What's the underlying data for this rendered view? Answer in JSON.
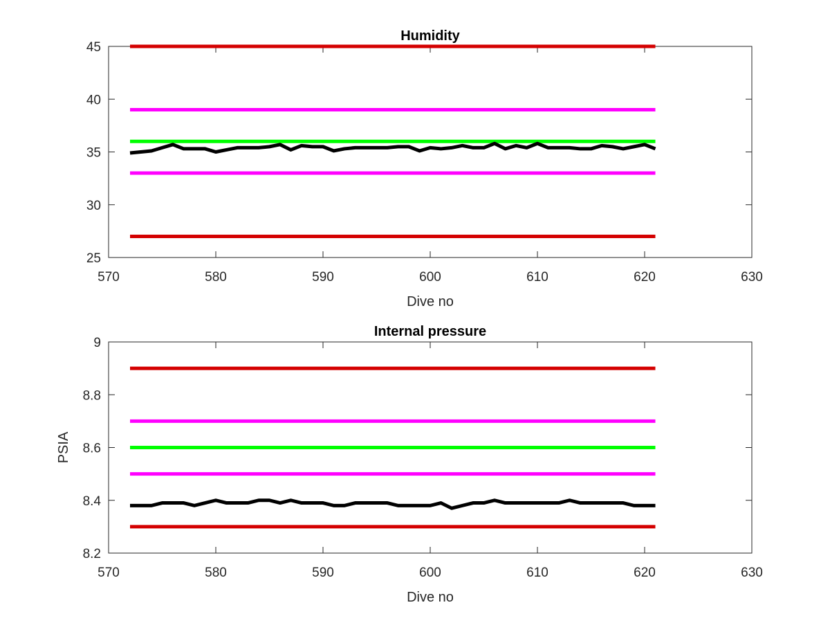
{
  "chart_data": [
    {
      "type": "line",
      "title": "Humidity",
      "xlabel": "Dive no",
      "ylabel": "",
      "xlim": [
        570,
        630
      ],
      "ylim": [
        25,
        45
      ],
      "xticks": [
        570,
        580,
        590,
        600,
        610,
        620,
        630
      ],
      "yticks": [
        25,
        30,
        35,
        40,
        45
      ],
      "grid": false,
      "thresholds": [
        {
          "y": 45,
          "x": [
            572,
            621
          ],
          "color": "#d40000"
        },
        {
          "y": 39,
          "x": [
            572,
            621
          ],
          "color": "#ff00ff"
        },
        {
          "y": 36,
          "x": [
            572,
            621
          ],
          "color": "#00ff00"
        },
        {
          "y": 33,
          "x": [
            572,
            621
          ],
          "color": "#ff00ff"
        },
        {
          "y": 27,
          "x": [
            572,
            621
          ],
          "color": "#d40000"
        }
      ],
      "series": [
        {
          "color": "#000000",
          "x": [
            572,
            573,
            574,
            575,
            576,
            577,
            578,
            579,
            580,
            581,
            582,
            583,
            584,
            585,
            586,
            587,
            588,
            589,
            590,
            591,
            592,
            593,
            594,
            595,
            596,
            597,
            598,
            599,
            600,
            601,
            602,
            603,
            604,
            605,
            606,
            607,
            608,
            609,
            610,
            611,
            612,
            613,
            614,
            615,
            616,
            617,
            618,
            619,
            620,
            621
          ],
          "values": [
            34.9,
            35.0,
            35.1,
            35.4,
            35.7,
            35.3,
            35.3,
            35.3,
            35.0,
            35.2,
            35.4,
            35.4,
            35.4,
            35.5,
            35.7,
            35.2,
            35.6,
            35.5,
            35.5,
            35.1,
            35.3,
            35.4,
            35.4,
            35.4,
            35.4,
            35.5,
            35.5,
            35.1,
            35.4,
            35.3,
            35.4,
            35.6,
            35.4,
            35.4,
            35.8,
            35.3,
            35.6,
            35.4,
            35.8,
            35.4,
            35.4,
            35.4,
            35.3,
            35.3,
            35.6,
            35.5,
            35.3,
            35.5,
            35.7,
            35.3
          ]
        }
      ]
    },
    {
      "type": "line",
      "title": "Internal pressure",
      "xlabel": "Dive no",
      "ylabel": "PSIA",
      "xlim": [
        570,
        630
      ],
      "ylim": [
        8.2,
        9
      ],
      "xticks": [
        570,
        580,
        590,
        600,
        610,
        620,
        630
      ],
      "yticks": [
        8.2,
        8.4,
        8.6,
        8.8,
        9
      ],
      "grid": false,
      "thresholds": [
        {
          "y": 8.9,
          "x": [
            572,
            621
          ],
          "color": "#d40000"
        },
        {
          "y": 8.7,
          "x": [
            572,
            621
          ],
          "color": "#ff00ff"
        },
        {
          "y": 8.6,
          "x": [
            572,
            621
          ],
          "color": "#00ff00"
        },
        {
          "y": 8.5,
          "x": [
            572,
            621
          ],
          "color": "#ff00ff"
        },
        {
          "y": 8.3,
          "x": [
            572,
            621
          ],
          "color": "#d40000"
        }
      ],
      "series": [
        {
          "color": "#000000",
          "x": [
            572,
            573,
            574,
            575,
            576,
            577,
            578,
            579,
            580,
            581,
            582,
            583,
            584,
            585,
            586,
            587,
            588,
            589,
            590,
            591,
            592,
            593,
            594,
            595,
            596,
            597,
            598,
            599,
            600,
            601,
            602,
            603,
            604,
            605,
            606,
            607,
            608,
            609,
            610,
            611,
            612,
            613,
            614,
            615,
            616,
            617,
            618,
            619,
            620,
            621
          ],
          "values": [
            8.38,
            8.38,
            8.38,
            8.39,
            8.39,
            8.39,
            8.38,
            8.39,
            8.4,
            8.39,
            8.39,
            8.39,
            8.4,
            8.4,
            8.39,
            8.4,
            8.39,
            8.39,
            8.39,
            8.38,
            8.38,
            8.39,
            8.39,
            8.39,
            8.39,
            8.38,
            8.38,
            8.38,
            8.38,
            8.39,
            8.37,
            8.38,
            8.39,
            8.39,
            8.4,
            8.39,
            8.39,
            8.39,
            8.39,
            8.39,
            8.39,
            8.4,
            8.39,
            8.39,
            8.39,
            8.39,
            8.39,
            8.38,
            8.38,
            8.38
          ]
        }
      ]
    }
  ]
}
